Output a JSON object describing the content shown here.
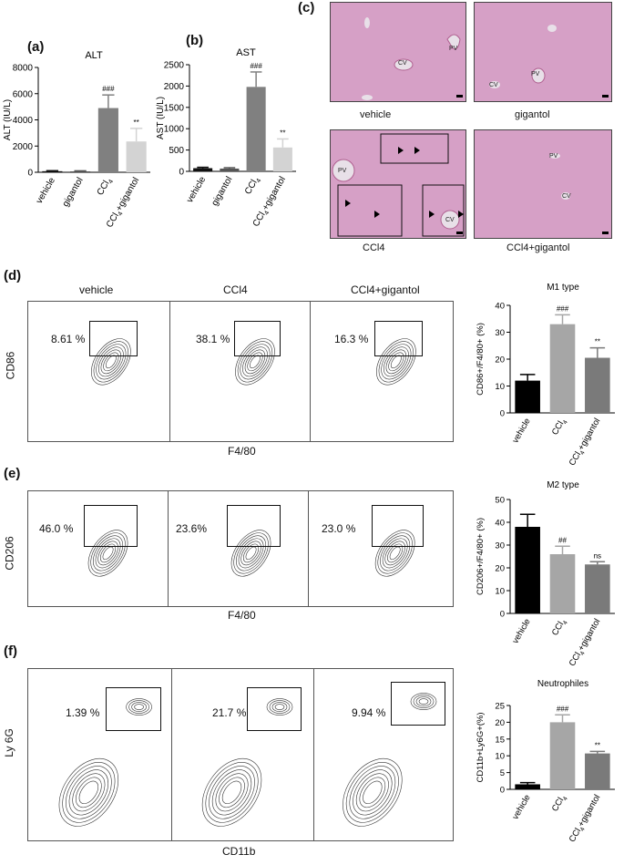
{
  "panel_labels": {
    "a": "(a)",
    "b": "(b)",
    "c": "(c)",
    "d": "(d)",
    "e": "(e)",
    "f": "(f)"
  },
  "histology": {
    "captions": [
      "vehicle",
      "gigantol",
      "CCl4",
      "CCl4+gigantol"
    ],
    "vessel_labels": {
      "cv": "CV",
      "pv": "PV"
    }
  },
  "flow": {
    "columns": [
      "vehicle",
      "CCl4",
      "CCl4+gigantol"
    ],
    "rows": [
      {
        "ylabel": "CD86",
        "xlabel": "F4/80",
        "percents": [
          "8.61 %",
          "38.1 %",
          "16.3 %"
        ]
      },
      {
        "ylabel": "CD206",
        "xlabel": "F4/80",
        "percents": [
          "46.0 %",
          "23.6%",
          "23.0 %"
        ]
      },
      {
        "ylabel": "Ly 6G",
        "xlabel": "CD11b",
        "percents": [
          "1.39 %",
          "21.7 %",
          "9.94 %"
        ]
      }
    ]
  },
  "chart_data": [
    {
      "id": "alt",
      "type": "bar",
      "title": "ALT",
      "ylabel": "ALT (IU/L)",
      "ylim": [
        0,
        8000
      ],
      "yticks": [
        0,
        2000,
        4000,
        6000,
        8000
      ],
      "categories": [
        "vehicle",
        "gigantol",
        "CCl4",
        "CCl4+gigantol"
      ],
      "values": [
        80,
        70,
        4900,
        2350
      ],
      "errors": [
        40,
        40,
        1000,
        1000
      ],
      "colors": [
        "#111111",
        "#555555",
        "#808080",
        "#d3d3d3"
      ],
      "annotations": [
        "",
        "",
        "###",
        "**"
      ]
    },
    {
      "id": "ast",
      "type": "bar",
      "title": "AST",
      "ylabel": "AST (IU/L)",
      "ylim": [
        0,
        2500
      ],
      "yticks": [
        0,
        500,
        1000,
        1500,
        2000,
        2500
      ],
      "categories": [
        "vehicle",
        "gigantol",
        "CCl4",
        "CCl4+gigantol"
      ],
      "values": [
        75,
        65,
        1980,
        560
      ],
      "errors": [
        20,
        20,
        350,
        200
      ],
      "colors": [
        "#111111",
        "#555555",
        "#808080",
        "#d3d3d3"
      ],
      "annotations": [
        "",
        "",
        "###",
        "**"
      ]
    },
    {
      "id": "m1",
      "type": "bar",
      "title": "M1 type",
      "ylabel": "CD86+/F4/80+ (%)",
      "ylim": [
        0,
        40
      ],
      "yticks": [
        0,
        10,
        20,
        30,
        40
      ],
      "categories": [
        "vehicle",
        "CCl4",
        "CCl4+gigantol"
      ],
      "values": [
        12,
        33,
        20.5
      ],
      "errors": [
        2.3,
        3.5,
        3.7
      ],
      "colors": [
        "#000000",
        "#a6a6a6",
        "#7a7a7a"
      ],
      "annotations": [
        "",
        "###",
        "**"
      ]
    },
    {
      "id": "m2",
      "type": "bar",
      "title": "M2 type",
      "ylabel": "CD206+/F4/80+ (%)",
      "ylim": [
        0,
        50
      ],
      "yticks": [
        0,
        10,
        20,
        30,
        40,
        50
      ],
      "categories": [
        "vehicle",
        "CCl4",
        "CCl4+gigantol"
      ],
      "values": [
        38,
        26,
        21.5
      ],
      "errors": [
        5.5,
        3.5,
        1.2
      ],
      "colors": [
        "#000000",
        "#a6a6a6",
        "#7a7a7a"
      ],
      "annotations": [
        "",
        "##",
        "ns"
      ]
    },
    {
      "id": "neu",
      "type": "bar",
      "title": "Neutrophiles",
      "ylabel": "CD11b+Ly6G+(%)",
      "ylim": [
        0,
        25
      ],
      "yticks": [
        0,
        5,
        10,
        15,
        20,
        25
      ],
      "categories": [
        "vehicle",
        "CCl4",
        "CCl4+gigantol"
      ],
      "values": [
        1.5,
        20,
        10.7
      ],
      "errors": [
        0.5,
        2.2,
        0.6
      ],
      "colors": [
        "#000000",
        "#a6a6a6",
        "#7a7a7a"
      ],
      "annotations": [
        "",
        "###",
        "**"
      ]
    }
  ]
}
